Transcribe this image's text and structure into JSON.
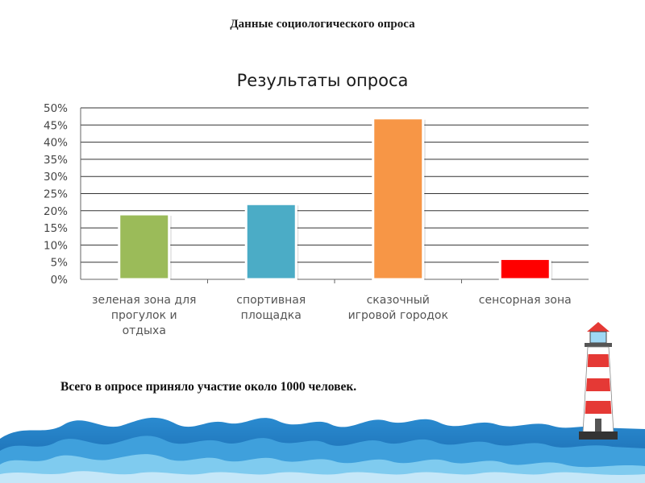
{
  "slide": {
    "title": "Данные социологического опроса",
    "note": "Всего в опросе приняло участие около 1000 человек."
  },
  "colors": {
    "bar_green": "#9bbb59",
    "bar_blue": "#4bacc6",
    "bar_orange": "#f79646",
    "bar_red": "#ff0000",
    "gridline": "#333333",
    "sea_dark": "#1a7cc4",
    "sea_light": "#6fc3ec",
    "lighthouse_red": "#e53935"
  },
  "decorations": {
    "bottom": "sea-waves",
    "right": "lighthouse"
  },
  "chart_data": {
    "type": "bar",
    "title": "Результаты опроса",
    "xlabel": "",
    "ylabel": "",
    "ylim": [
      0,
      50
    ],
    "yticks": [
      "0%",
      "5%",
      "10%",
      "15%",
      "20%",
      "25%",
      "30%",
      "35%",
      "40%",
      "45%",
      "50%"
    ],
    "grid": true,
    "legend": "none",
    "categories": [
      [
        "зеленая зона для",
        "прогулок и",
        "отдыха"
      ],
      [
        "спортивная",
        "площадка"
      ],
      [
        "сказочный",
        "игровой городок"
      ],
      [
        "сенсорная зона"
      ]
    ],
    "values": [
      19,
      22,
      47,
      6
    ],
    "bar_colors": [
      "#9bbb59",
      "#4bacc6",
      "#f79646",
      "#ff0000"
    ]
  }
}
